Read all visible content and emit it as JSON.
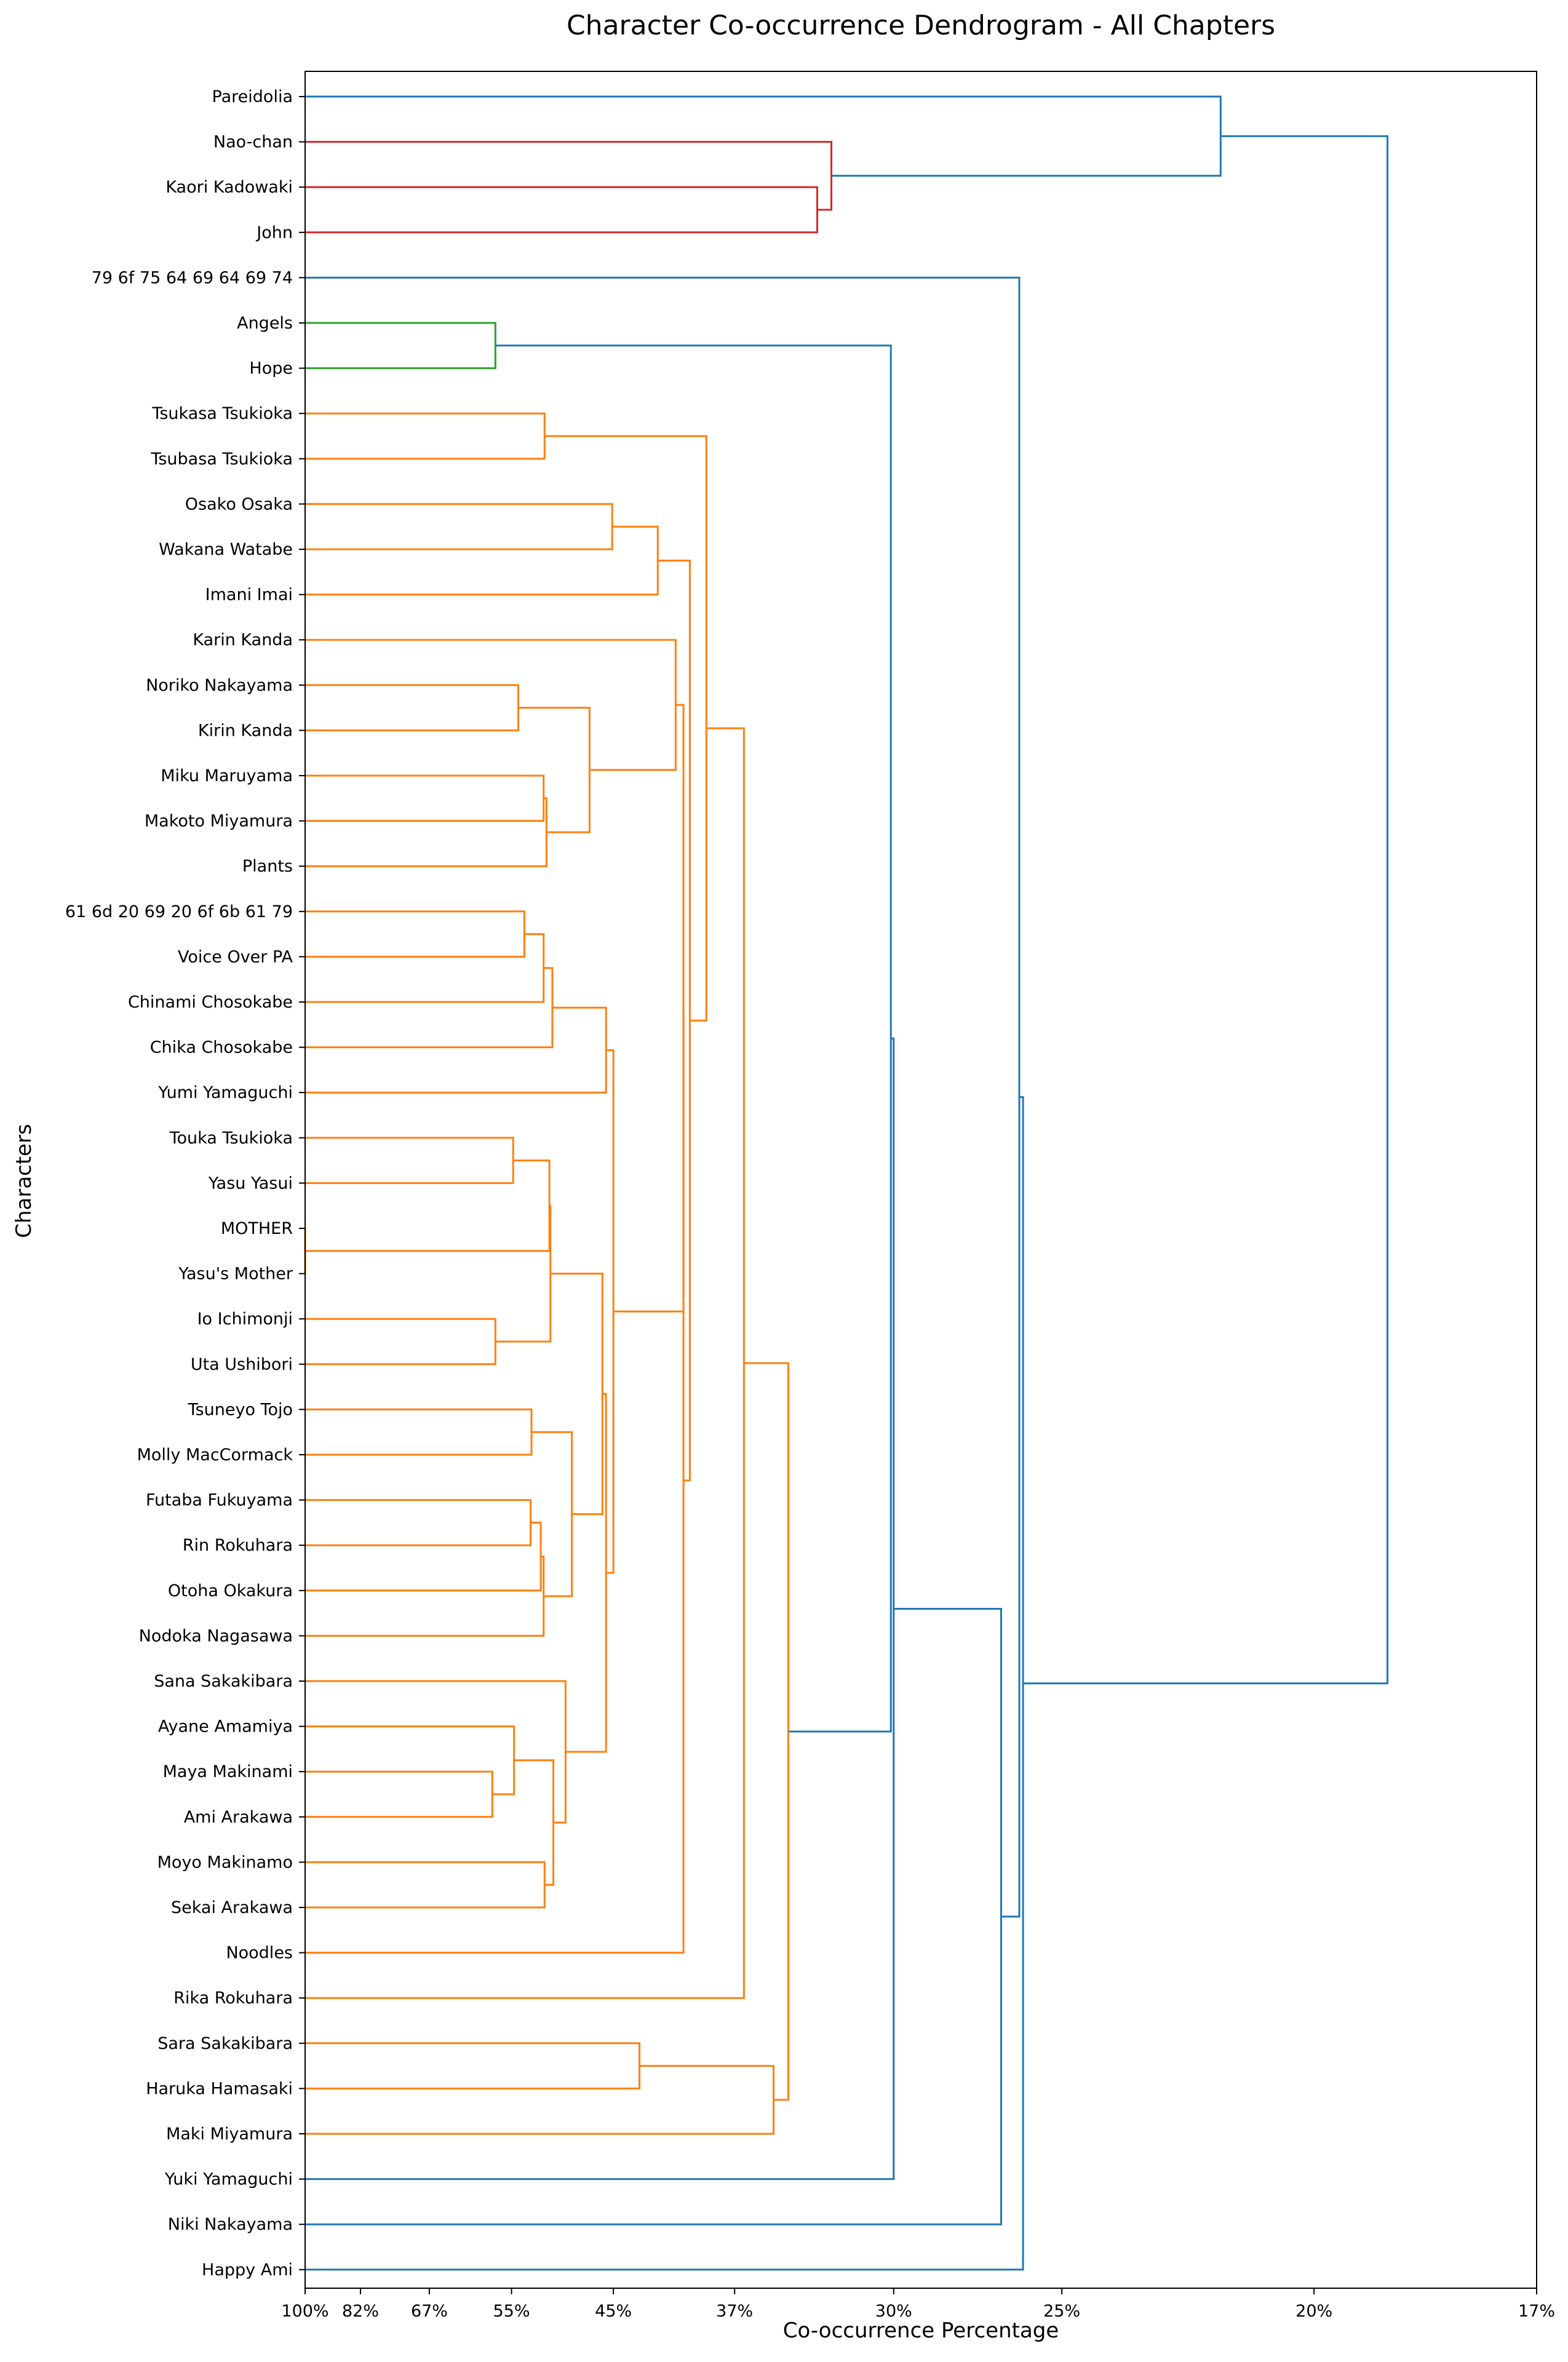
{
  "chart_data": {
    "type": "dendrogram",
    "title": "Character Co-occurrence Dendrogram - All Chapters",
    "xlabel": "Co-occurrence Percentage",
    "ylabel": "Characters",
    "orientation": "left",
    "x_scale": "reciprocal",
    "xlim": [
      100,
      17
    ],
    "x_ticks": [
      100,
      82,
      67,
      55,
      45,
      37,
      30,
      25,
      20,
      17
    ],
    "x_tick_labels": [
      "100%",
      "82%",
      "67%",
      "55%",
      "45%",
      "37%",
      "30%",
      "25%",
      "20%",
      "17%"
    ],
    "grid": false,
    "colors": {
      "orange": "#ff7f0e",
      "green": "#2ca02c",
      "red": "#d62728",
      "blue": "#1f77b4"
    },
    "leaves": [
      "Pareidolia",
      "Nao-chan",
      "Kaori Kadowaki",
      "John",
      "79 6f 75 64 69 64 69 74",
      "Angels",
      "Hope",
      "Tsukasa Tsukioka",
      "Tsubasa Tsukioka",
      "Osako Osaka",
      "Wakana Watabe",
      "Imani Imai",
      "Karin Kanda",
      "Noriko Nakayama",
      "Kirin Kanda",
      "Miku Maruyama",
      "Makoto Miyamura",
      "Plants",
      "61 6d 20 69 20 6f 6b 61 79",
      "Voice Over PA",
      "Chinami Chosokabe",
      "Chika Chosokabe",
      "Yumi Yamaguchi",
      "Touka Tsukioka",
      "Yasu Yasui",
      "MOTHER",
      "Yasu's Mother",
      "Io Ichimonji",
      "Uta Ushibori",
      "Tsuneyo Tojo",
      "Molly MacCormack",
      "Futaba Fukuyama",
      "Rin Rokuhara",
      "Otoha Okakura",
      "Nodoka Nagasawa",
      "Sana Sakakibara",
      "Ayane Amamiya",
      "Maya Makinami",
      "Ami Arakawa",
      "Moyo Makinamo",
      "Sekai Arakawa",
      "Noodles",
      "Rika Rokuhara",
      "Sara Sakakibara",
      "Haruka Hamasaki",
      "Maki Miyamura",
      "Yuki Yamaguchi",
      "Niki Nakayama",
      "Happy Ami"
    ],
    "merges": [
      {
        "id": "c01",
        "left": "MOTHER",
        "right": "Yasu's Mother",
        "height": 100,
        "color": "orange"
      },
      {
        "id": "c02",
        "left": "Maya Makinami",
        "right": "Ami Arakawa",
        "height": 57.4,
        "color": "orange"
      },
      {
        "id": "c03",
        "left": "Io Ichimonji",
        "right": "Uta Ushibori",
        "height": 57.0,
        "color": "orange"
      },
      {
        "id": "c04",
        "left": "Angels",
        "right": "Hope",
        "height": 57.0,
        "color": "green"
      },
      {
        "id": "c05",
        "left": "Ayane Amamiya",
        "right": "c02",
        "height": 54.7,
        "color": "orange"
      },
      {
        "id": "c06",
        "left": "Touka Tsukioka",
        "right": "Yasu Yasui",
        "height": 54.8,
        "color": "orange"
      },
      {
        "id": "c07",
        "left": "Noriko Nakayama",
        "right": "Kirin Kanda",
        "height": 54.2,
        "color": "orange"
      },
      {
        "id": "c08",
        "left": "61 6d 20 69 20 6f 6b 61 79",
        "right": "Voice Over PA",
        "height": 53.5,
        "color": "orange"
      },
      {
        "id": "c09",
        "left": "Tsuneyo Tojo",
        "right": "Molly MacCormack",
        "height": 52.7,
        "color": "orange"
      },
      {
        "id": "c10",
        "left": "Futaba Fukuyama",
        "right": "Rin Rokuhara",
        "height": 52.8,
        "color": "orange"
      },
      {
        "id": "c11",
        "left": "c10",
        "right": "Otoha Okakura",
        "height": 51.7,
        "color": "orange"
      },
      {
        "id": "c12",
        "left": "Miku Maruyama",
        "right": "Makoto Miyamura",
        "height": 51.4,
        "color": "orange"
      },
      {
        "id": "c13",
        "left": "c08",
        "right": "Chinami Chosokabe",
        "height": 51.4,
        "color": "orange"
      },
      {
        "id": "c14",
        "left": "Tsukasa Tsukioka",
        "right": "Tsubasa Tsukioka",
        "height": 51.3,
        "color": "orange"
      },
      {
        "id": "c15",
        "left": "Moyo Makinamo",
        "right": "Sekai Arakawa",
        "height": 51.3,
        "color": "orange"
      },
      {
        "id": "c16",
        "left": "c11",
        "right": "Nodoka Nagasawa",
        "height": 51.4,
        "color": "orange"
      },
      {
        "id": "c17",
        "left": "c12",
        "right": "Plants",
        "height": 51.1,
        "color": "orange"
      },
      {
        "id": "c18",
        "left": "c13",
        "right": "Chika Chosokabe",
        "height": 50.5,
        "color": "orange"
      },
      {
        "id": "c19",
        "left": "c06",
        "right": "c01",
        "height": 50.8,
        "color": "orange"
      },
      {
        "id": "c20",
        "left": "c19",
        "right": "c03",
        "height": 50.7,
        "color": "orange"
      },
      {
        "id": "c21",
        "left": "c05",
        "right": "c15",
        "height": 50.4,
        "color": "orange"
      },
      {
        "id": "c22",
        "left": "Sana Sakakibara",
        "right": "c21",
        "height": 49.2,
        "color": "orange"
      },
      {
        "id": "c23",
        "left": "c09",
        "right": "c16",
        "height": 48.6,
        "color": "orange"
      },
      {
        "id": "c24",
        "left": "c07",
        "right": "c17",
        "height": 47.0,
        "color": "orange"
      },
      {
        "id": "c25",
        "left": "c20",
        "right": "c23",
        "height": 45.9,
        "color": "orange"
      },
      {
        "id": "c26",
        "left": "c25",
        "right": "c22",
        "height": 45.6,
        "color": "orange"
      },
      {
        "id": "c27",
        "left": "c18",
        "right": "Yumi Yamaguchi",
        "height": 45.6,
        "color": "orange"
      },
      {
        "id": "c28",
        "left": "c27",
        "right": "c26",
        "height": 45.0,
        "color": "orange"
      },
      {
        "id": "c29",
        "left": "Osako Osaka",
        "right": "Wakana Watabe",
        "height": 45.1,
        "color": "orange"
      },
      {
        "id": "c30",
        "left": "Sara Sakakibara",
        "right": "Haruka Hamasaki",
        "height": 43.0,
        "color": "orange"
      },
      {
        "id": "c31",
        "left": "c29",
        "right": "Imani Imai",
        "height": 41.7,
        "color": "orange"
      },
      {
        "id": "c32",
        "left": "Karin Kanda",
        "right": "c24",
        "height": 40.5,
        "color": "orange"
      },
      {
        "id": "c33",
        "left": "c32",
        "right": "c28",
        "height": 40.0,
        "color": "orange"
      },
      {
        "id": "c34",
        "left": "c33",
        "right": "Noodles",
        "height": 40.0,
        "color": "orange"
      },
      {
        "id": "c35",
        "left": "c31",
        "right": "c34",
        "height": 39.6,
        "color": "orange"
      },
      {
        "id": "c36",
        "left": "c14",
        "right": "c35",
        "height": 38.6,
        "color": "orange"
      },
      {
        "id": "c37",
        "left": "c36",
        "right": "Rika Rokuhara",
        "height": 36.5,
        "color": "orange"
      },
      {
        "id": "c38",
        "left": "c30",
        "right": "Maki Miyamura",
        "height": 35.0,
        "color": "orange"
      },
      {
        "id": "c39",
        "left": "c37",
        "right": "c38",
        "height": 34.3,
        "color": "orange"
      },
      {
        "id": "c40",
        "left": "Kaori Kadowaki",
        "right": "John",
        "height": 33.0,
        "color": "red"
      },
      {
        "id": "c41",
        "left": "Nao-chan",
        "right": "c40",
        "height": 32.4,
        "color": "red"
      },
      {
        "id": "c42",
        "left": "c04",
        "right": "c39",
        "height": 30.1,
        "color": "blue"
      },
      {
        "id": "c43",
        "left": "c42",
        "right": "Yuki Yamaguchi",
        "height": 30.0,
        "color": "blue"
      },
      {
        "id": "c44",
        "left": "c43",
        "right": "Niki Nakayama",
        "height": 26.6,
        "color": "blue"
      },
      {
        "id": "c45",
        "left": "79 6f 75 64 69 64 69 74",
        "right": "c44",
        "height": 26.1,
        "color": "blue"
      },
      {
        "id": "c46",
        "left": "c45",
        "right": "Happy Ami",
        "height": 26.0,
        "color": "blue"
      },
      {
        "id": "c47",
        "left": "Pareidolia",
        "right": "c41",
        "height": 21.6,
        "color": "blue"
      },
      {
        "id": "c48",
        "left": "c47",
        "right": "c46",
        "height": 18.9,
        "color": "blue"
      }
    ]
  }
}
